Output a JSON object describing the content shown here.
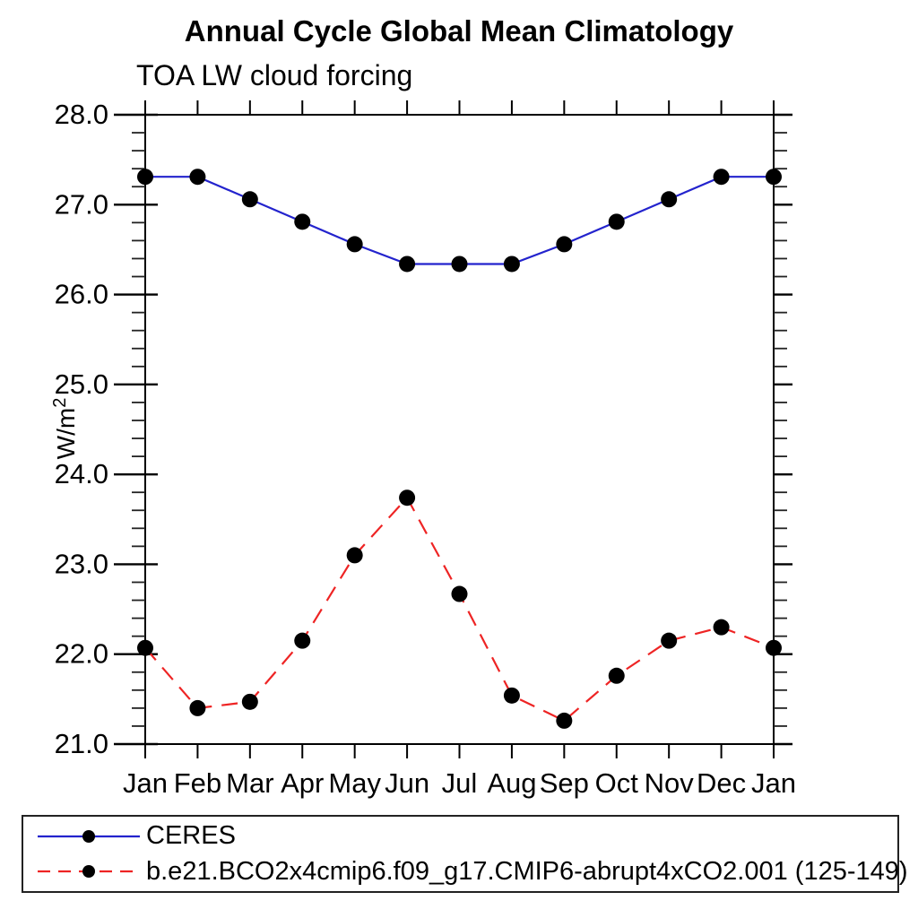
{
  "header": {
    "title": "Annual Cycle Global Mean Climatology",
    "subtitle": "TOA LW cloud forcing"
  },
  "chart_data": {
    "type": "line",
    "title": "Annual Cycle Global Mean Climatology",
    "subtitle": "TOA LW cloud forcing",
    "ylabel": "W/m²",
    "ylabel_base": "W/m",
    "ylabel_exp": "2",
    "xlabel": "",
    "categories": [
      "Jan",
      "Feb",
      "Mar",
      "Apr",
      "May",
      "Jun",
      "Jul",
      "Aug",
      "Sep",
      "Oct",
      "Nov",
      "Dec",
      "Jan"
    ],
    "ylim": [
      21.0,
      28.0
    ],
    "ytick_labels": [
      "28.0",
      "27.0",
      "26.0",
      "25.0",
      "24.0",
      "23.0",
      "22.0",
      "21.0"
    ],
    "ytick_interval": 1.0,
    "minor_tick_interval": 0.2,
    "grid": false,
    "legend_position": "bottom",
    "axis_color": "#000000",
    "series": [
      {
        "name": "CERES",
        "color": "#2323cd",
        "line_style": "solid",
        "marker": "filled-circle",
        "marker_color": "#000000",
        "values": [
          27.31,
          27.31,
          27.06,
          26.81,
          26.56,
          26.34,
          26.34,
          26.34,
          26.56,
          26.81,
          27.06,
          27.31,
          27.31
        ]
      },
      {
        "name": "b.e21.BCO2x4cmip6.f09_g17.CMIP6-abrupt4xCO2.001 (125-149)",
        "color": "#ee2424",
        "line_style": "dashed",
        "marker": "filled-circle",
        "marker_color": "#000000",
        "values": [
          22.07,
          21.4,
          21.47,
          22.15,
          23.1,
          23.74,
          22.67,
          21.54,
          21.26,
          21.76,
          22.15,
          22.3,
          22.07
        ]
      }
    ]
  }
}
